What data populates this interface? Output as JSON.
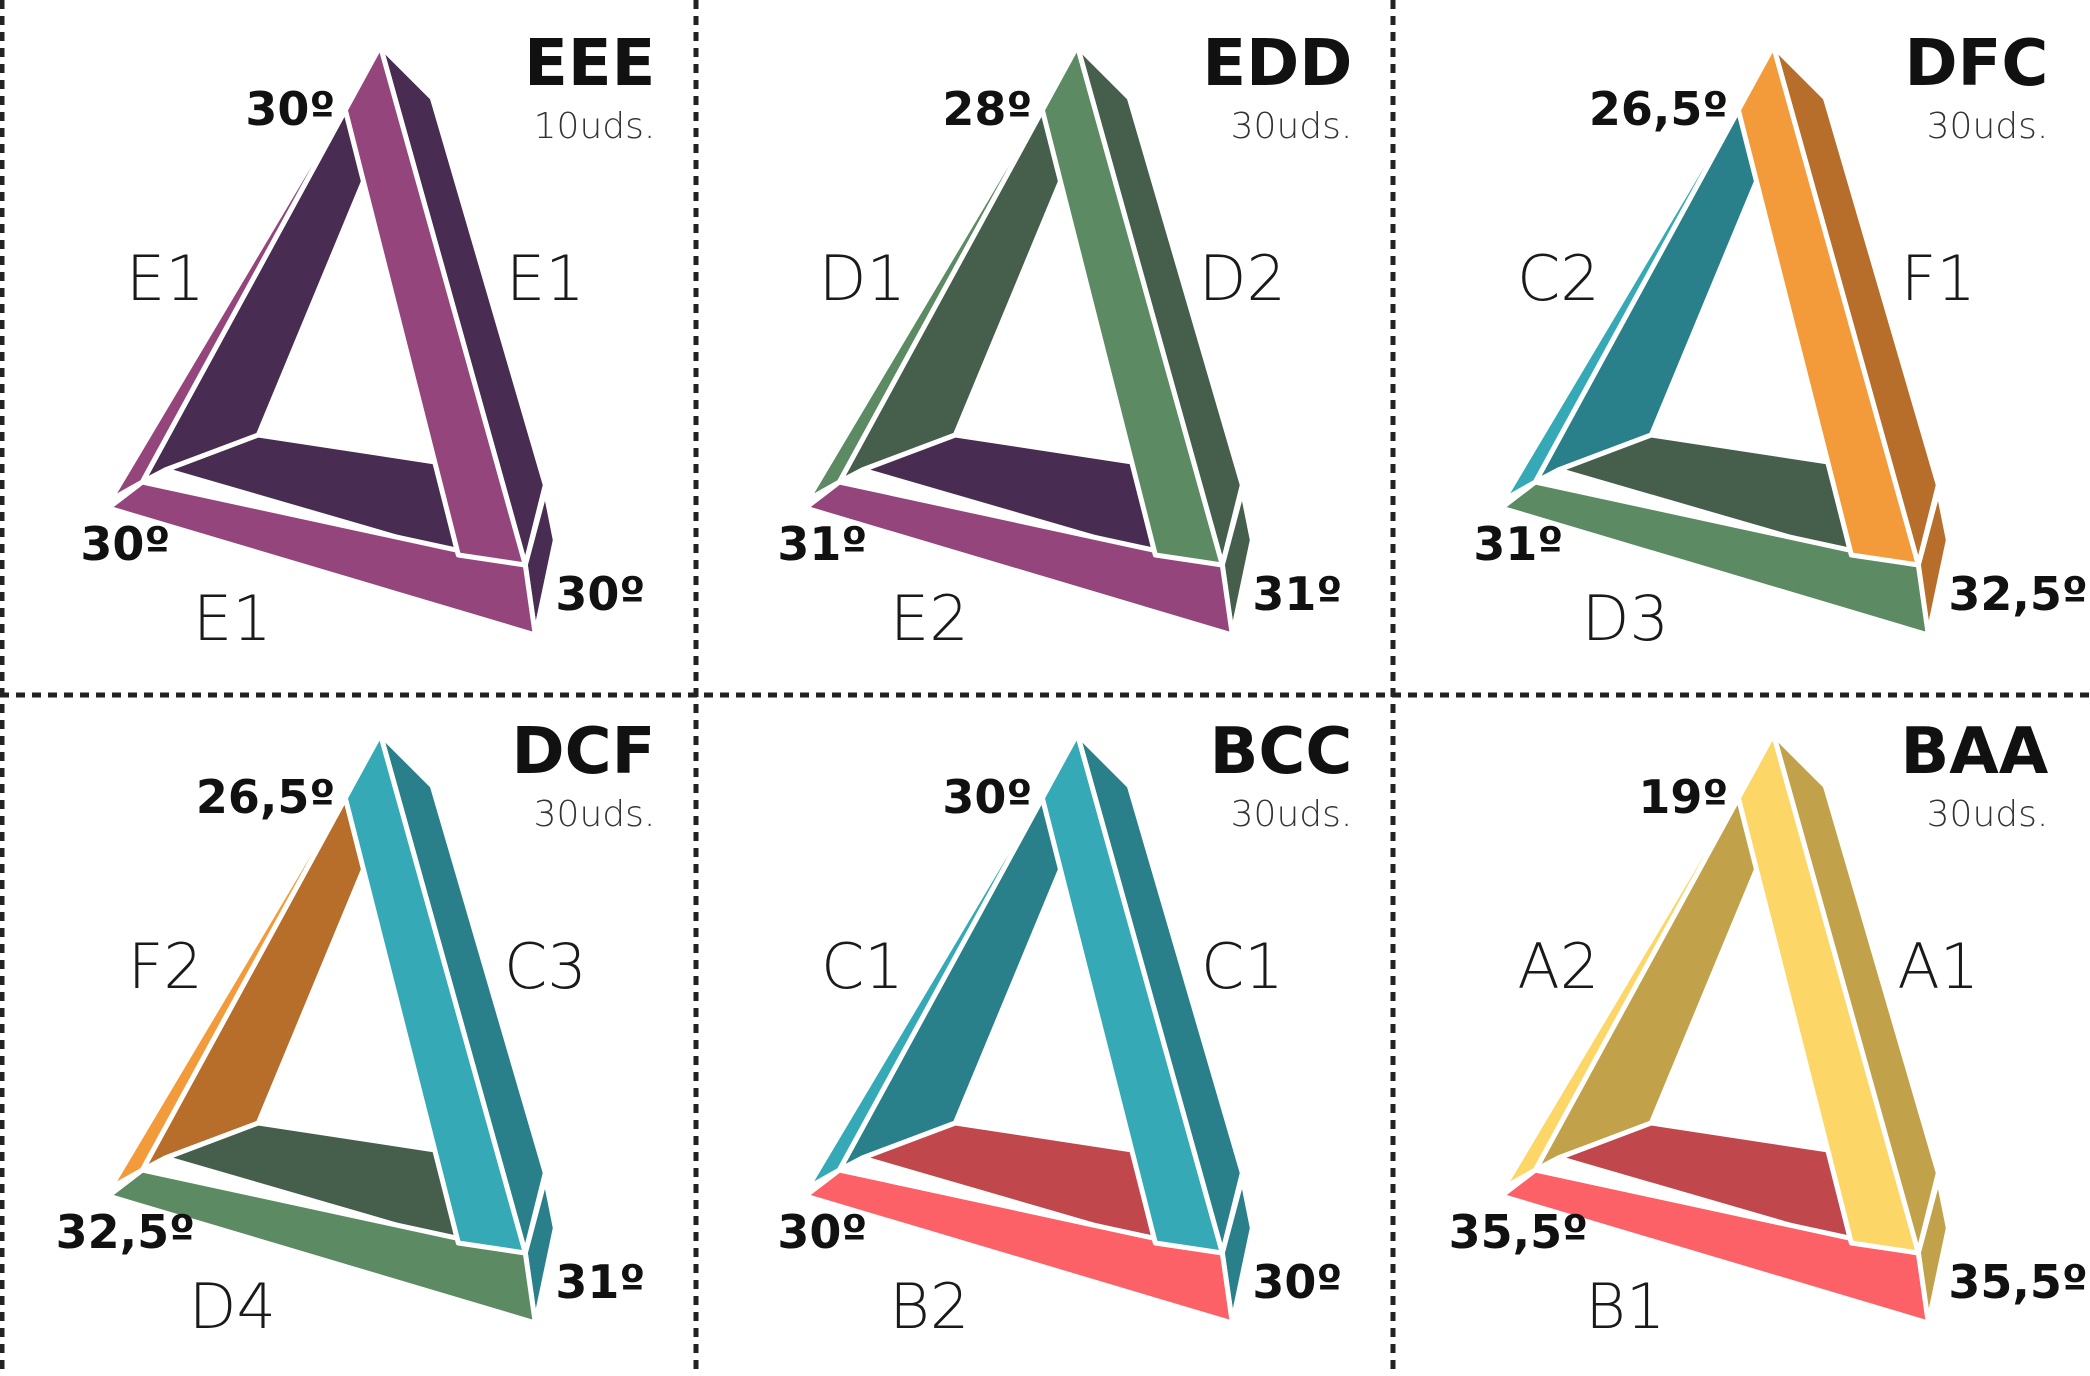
{
  "units_suffix": "uds.",
  "panels": [
    {
      "code": "EEE",
      "quantity": "10uds.",
      "angles": {
        "top": "30º",
        "left": "30º",
        "right": "30º"
      },
      "sides": {
        "left": "E1",
        "right": "E1",
        "bottom": "E1"
      },
      "colors": {
        "left": {
          "face": "#94467c",
          "dark": "#492c52"
        },
        "right": {
          "face": "#94467c",
          "dark": "#492c52"
        },
        "bottom": {
          "face": "#94467c",
          "dark": "#492c52"
        }
      }
    },
    {
      "code": "EDD",
      "quantity": "30uds.",
      "angles": {
        "top": "28º",
        "left": "31º",
        "right": "31º"
      },
      "sides": {
        "left": "D1",
        "right": "D2",
        "bottom": "E2"
      },
      "colors": {
        "left": {
          "face": "#5c8a62",
          "dark": "#465f4d"
        },
        "right": {
          "face": "#5c8a62",
          "dark": "#465f4d"
        },
        "bottom": {
          "face": "#94467c",
          "dark": "#492c52"
        }
      }
    },
    {
      "code": "DFC",
      "quantity": "30uds.",
      "angles": {
        "top": "26,5º",
        "left": "31º",
        "right": "32,5º"
      },
      "sides": {
        "left": "C2",
        "right": "F1",
        "bottom": "D3"
      },
      "colors": {
        "left": {
          "face": "#35aab6",
          "dark": "#2a808a"
        },
        "right": {
          "face": "#f39b3b",
          "dark": "#b66e2a"
        },
        "bottom": {
          "face": "#5c8a62",
          "dark": "#465f4d"
        }
      }
    },
    {
      "code": "DCF",
      "quantity": "30uds.",
      "angles": {
        "top": "26,5º",
        "left": "32,5º",
        "right": "31º"
      },
      "sides": {
        "left": "F2",
        "right": "C3",
        "bottom": "D4"
      },
      "colors": {
        "left": {
          "face": "#f39b3b",
          "dark": "#b66e2a"
        },
        "right": {
          "face": "#35aab6",
          "dark": "#2a808a"
        },
        "bottom": {
          "face": "#5c8a62",
          "dark": "#465f4d"
        }
      }
    },
    {
      "code": "BCC",
      "quantity": "30uds.",
      "angles": {
        "top": "30º",
        "left": "30º",
        "right": "30º"
      },
      "sides": {
        "left": "C1",
        "right": "C1",
        "bottom": "B2"
      },
      "colors": {
        "left": {
          "face": "#35aab6",
          "dark": "#2a808a"
        },
        "right": {
          "face": "#35aab6",
          "dark": "#2a808a"
        },
        "bottom": {
          "face": "#fb6167",
          "dark": "#c0474b"
        }
      }
    },
    {
      "code": "BAA",
      "quantity": "30uds.",
      "angles": {
        "top": "19º",
        "left": "35,5º",
        "right": "35,5º"
      },
      "sides": {
        "left": "A2",
        "right": "A1",
        "bottom": "B1"
      },
      "colors": {
        "left": {
          "face": "#fcd767",
          "dark": "#c1a24b"
        },
        "right": {
          "face": "#fcd767",
          "dark": "#c1a24b"
        },
        "bottom": {
          "face": "#fb6167",
          "dark": "#c0474b"
        }
      }
    }
  ]
}
